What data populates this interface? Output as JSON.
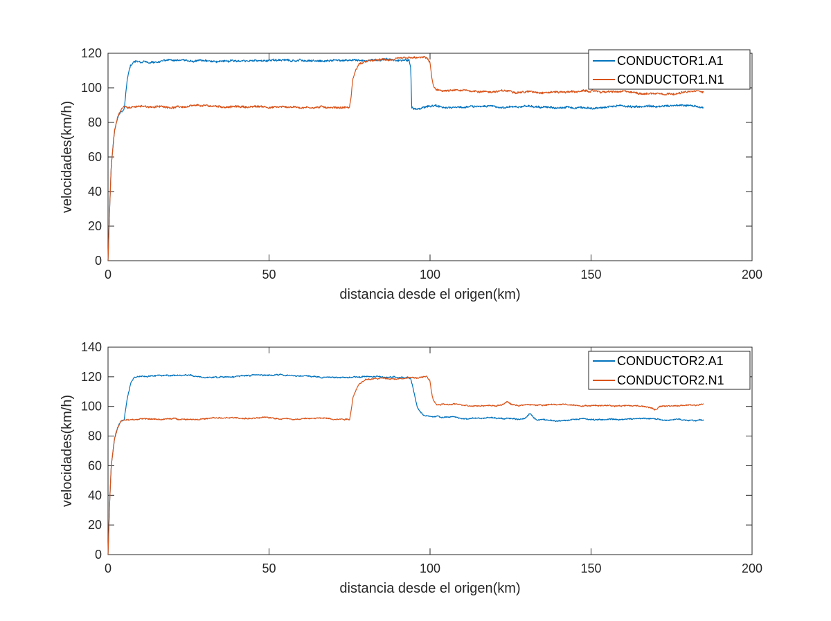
{
  "chart_data": [
    {
      "type": "line",
      "title": "",
      "xlabel": "distancia desde el origen(km)",
      "ylabel": "velocidades(km/h)",
      "xlim": [
        0,
        200
      ],
      "ylim": [
        0,
        120
      ],
      "xticks": [
        0,
        50,
        100,
        150,
        200
      ],
      "yticks": [
        0,
        20,
        40,
        60,
        80,
        100,
        120
      ],
      "grid": false,
      "legend_position": "top-right",
      "noise": 1.0,
      "series": [
        {
          "name": "CONDUCTOR1.A1",
          "color": "#0072bd",
          "x": [
            0,
            0.5,
            1,
            2,
            3,
            4,
            5,
            6,
            7,
            8,
            10,
            20,
            40,
            60,
            70,
            75,
            80,
            88,
            92,
            93.5,
            94,
            94.3,
            95,
            100,
            120,
            140,
            160,
            175,
            185
          ],
          "y": [
            0,
            30,
            55,
            75,
            83,
            86,
            87,
            105,
            113,
            115,
            115.5,
            116,
            116,
            116,
            116,
            116,
            116,
            116,
            116,
            116,
            112,
            89,
            88,
            89,
            89,
            89,
            89,
            89,
            89
          ]
        },
        {
          "name": "CONDUCTOR1.N1",
          "color": "#d95319",
          "x": [
            0,
            0.5,
            1,
            2,
            3,
            4,
            5,
            6,
            10,
            30,
            50,
            70,
            75,
            75.5,
            76,
            77,
            78,
            80,
            85,
            95,
            99,
            100,
            100.5,
            101,
            102,
            110,
            130,
            150,
            165,
            170,
            185
          ],
          "y": [
            0,
            30,
            55,
            75,
            83,
            87,
            89,
            89,
            89,
            89,
            89,
            89,
            89,
            95,
            105,
            111,
            114,
            115,
            116,
            116.5,
            117,
            114,
            106,
            101,
            98,
            98,
            98,
            98,
            97,
            97,
            98
          ]
        }
      ]
    },
    {
      "type": "line",
      "title": "",
      "xlabel": "distancia desde el origen(km)",
      "ylabel": "velocidades(km/h)",
      "xlim": [
        0,
        200
      ],
      "ylim": [
        0,
        140
      ],
      "xticks": [
        0,
        50,
        100,
        150,
        200
      ],
      "yticks": [
        0,
        20,
        40,
        60,
        80,
        100,
        120,
        140
      ],
      "grid": false,
      "legend_position": "top-right",
      "noise": 0.7,
      "series": [
        {
          "name": "CONDUCTOR2.A1",
          "color": "#0072bd",
          "x": [
            0,
            0.5,
            1,
            2,
            3,
            4,
            5,
            6,
            7,
            8,
            10,
            30,
            50,
            70,
            80,
            90,
            94,
            95,
            96,
            97,
            98,
            100,
            110,
            130,
            140,
            150,
            170,
            185
          ],
          "y": [
            0,
            35,
            60,
            78,
            86,
            90,
            91,
            105,
            115,
            119,
            120,
            120,
            121,
            120,
            120,
            120,
            119,
            110,
            100,
            96,
            94,
            93,
            92,
            92,
            91,
            91,
            91,
            91
          ],
          "bumps": [
            [
              131,
              3
            ]
          ]
        },
        {
          "name": "CONDUCTOR2.N1",
          "color": "#d95319",
          "x": [
            0,
            0.5,
            1,
            2,
            3,
            4,
            5,
            6,
            10,
            30,
            50,
            70,
            75,
            75.5,
            76,
            77,
            78,
            80,
            85,
            95,
            99,
            100,
            100.5,
            101,
            102,
            110,
            140,
            160,
            170,
            185
          ],
          "y": [
            0,
            35,
            60,
            78,
            86,
            90,
            91,
            91,
            91,
            92,
            92,
            92,
            92,
            98,
            106,
            112,
            116,
            118,
            119,
            119.5,
            120,
            117,
            109,
            104,
            101,
            101,
            101,
            101,
            100,
            101
          ],
          "bumps": [
            [
              124,
              2
            ],
            [
              170,
              -2
            ]
          ]
        }
      ]
    }
  ]
}
